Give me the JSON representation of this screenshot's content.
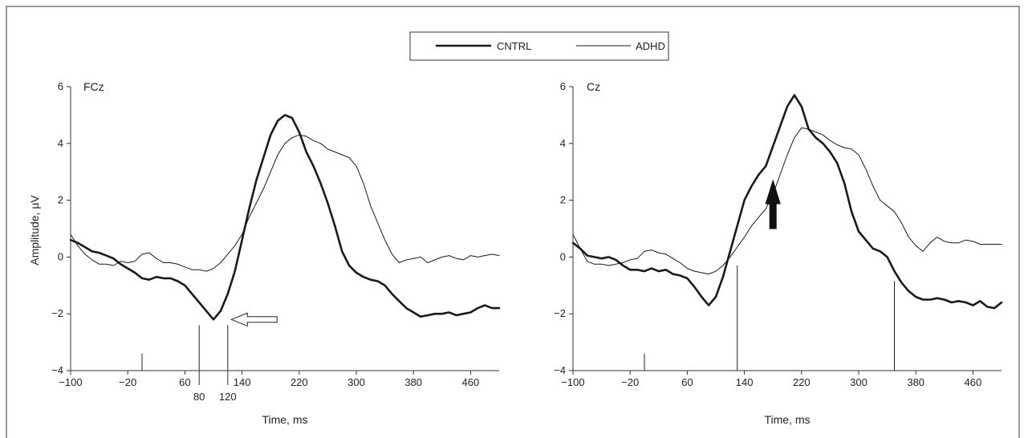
{
  "legend": {
    "items": [
      {
        "name": "CNTRL",
        "weight": "thick"
      },
      {
        "name": "ADHD",
        "weight": "thin"
      }
    ]
  },
  "chart_data": [
    {
      "type": "line",
      "panel_label": "FCz",
      "xlabel": "Time, ms",
      "ylabel": "Amplitude, µV",
      "xlim": [
        -100,
        500
      ],
      "ylim": [
        -4,
        6
      ],
      "xticks": [
        -100,
        -20,
        60,
        140,
        220,
        300,
        380,
        460
      ],
      "xtick_labels": [
        "−100",
        "−20",
        "60",
        "140",
        "220",
        "300",
        "380",
        "460"
      ],
      "yticks": [
        -4,
        -2,
        0,
        2,
        4,
        6
      ],
      "ytick_labels": [
        "−4",
        "−2",
        "0",
        "2",
        "4",
        "6"
      ],
      "extra_ticks": [
        {
          "x": 80,
          "label": "80"
        },
        {
          "x": 120,
          "label": "120"
        }
      ],
      "markers": [
        {
          "x": 0,
          "from": -4,
          "to": -3.4
        },
        {
          "x": 80,
          "from": -4,
          "to": -2.4
        },
        {
          "x": 120,
          "from": -4,
          "to": -2.4
        }
      ],
      "arrow": {
        "style": "hollow",
        "direction": "left",
        "x": 125,
        "y": -2.2
      },
      "series": [
        {
          "name": "CNTRL",
          "weight": "thick",
          "x": [
            -100,
            -90,
            -80,
            -70,
            -60,
            -50,
            -40,
            -30,
            -20,
            -10,
            0,
            10,
            20,
            30,
            40,
            50,
            60,
            70,
            80,
            90,
            100,
            110,
            120,
            130,
            140,
            150,
            160,
            170,
            180,
            190,
            200,
            210,
            220,
            230,
            240,
            250,
            260,
            270,
            280,
            290,
            300,
            310,
            320,
            330,
            340,
            350,
            360,
            370,
            380,
            390,
            400,
            410,
            420,
            430,
            440,
            450,
            460,
            470,
            480,
            490,
            500
          ],
          "y": [
            0.6,
            0.5,
            0.35,
            0.2,
            0.15,
            0.05,
            -0.05,
            -0.25,
            -0.4,
            -0.55,
            -0.75,
            -0.8,
            -0.7,
            -0.75,
            -0.75,
            -0.85,
            -1.0,
            -1.3,
            -1.6,
            -1.9,
            -2.2,
            -1.9,
            -1.3,
            -0.5,
            0.6,
            1.7,
            2.7,
            3.5,
            4.3,
            4.8,
            5.0,
            4.9,
            4.4,
            3.7,
            3.2,
            2.6,
            1.9,
            1.1,
            0.2,
            -0.3,
            -0.55,
            -0.7,
            -0.8,
            -0.85,
            -1.0,
            -1.3,
            -1.55,
            -1.8,
            -1.95,
            -2.1,
            -2.05,
            -2.0,
            -2.0,
            -1.95,
            -2.05,
            -2.0,
            -1.95,
            -1.8,
            -1.7,
            -1.8,
            -1.8
          ]
        },
        {
          "name": "ADHD",
          "weight": "thin",
          "x": [
            -100,
            -90,
            -80,
            -70,
            -60,
            -50,
            -40,
            -30,
            -20,
            -10,
            0,
            10,
            20,
            30,
            40,
            50,
            60,
            70,
            80,
            90,
            100,
            110,
            120,
            130,
            140,
            150,
            160,
            170,
            180,
            190,
            200,
            210,
            220,
            230,
            240,
            250,
            260,
            270,
            280,
            290,
            300,
            310,
            320,
            330,
            340,
            350,
            360,
            370,
            380,
            390,
            400,
            410,
            420,
            430,
            440,
            450,
            460,
            470,
            480,
            490,
            500
          ],
          "y": [
            0.8,
            0.4,
            0.1,
            -0.1,
            -0.25,
            -0.25,
            -0.3,
            -0.15,
            -0.2,
            -0.15,
            0.1,
            0.15,
            -0.05,
            -0.2,
            -0.2,
            -0.25,
            -0.35,
            -0.45,
            -0.45,
            -0.5,
            -0.4,
            -0.2,
            0.1,
            0.4,
            0.8,
            1.4,
            1.9,
            2.4,
            3.0,
            3.6,
            4.0,
            4.2,
            4.3,
            4.25,
            4.1,
            4.0,
            3.8,
            3.7,
            3.6,
            3.5,
            3.2,
            2.6,
            1.8,
            1.2,
            0.6,
            0.1,
            -0.2,
            -0.1,
            -0.05,
            0.0,
            -0.2,
            -0.1,
            0.0,
            0.05,
            -0.05,
            -0.1,
            0.05,
            0.0,
            0.05,
            0.1,
            0.05
          ]
        }
      ]
    },
    {
      "type": "line",
      "panel_label": "Cz",
      "xlabel": "Time, ms",
      "ylabel": "",
      "xlim": [
        -100,
        500
      ],
      "ylim": [
        -4,
        6
      ],
      "xticks": [
        -100,
        -20,
        60,
        140,
        220,
        300,
        380,
        460
      ],
      "xtick_labels": [
        "−100",
        "−20",
        "60",
        "140",
        "220",
        "300",
        "380",
        "460"
      ],
      "yticks": [
        -4,
        -2,
        0,
        2,
        4,
        6
      ],
      "ytick_labels": [
        "−4",
        "−2",
        "0",
        "2",
        "4",
        "6"
      ],
      "extra_ticks": [],
      "markers": [
        {
          "x": 0,
          "from": -4,
          "to": -3.4
        },
        {
          "x": 130,
          "from": -4,
          "to": -0.3
        },
        {
          "x": 350,
          "from": -4,
          "to": -0.85
        }
      ],
      "arrow": {
        "style": "solid",
        "direction": "up",
        "x": 180,
        "y": 1.0
      },
      "series": [
        {
          "name": "CNTRL",
          "weight": "thick",
          "x": [
            -100,
            -90,
            -80,
            -70,
            -60,
            -50,
            -40,
            -30,
            -20,
            -10,
            0,
            10,
            20,
            30,
            40,
            50,
            60,
            70,
            80,
            90,
            100,
            110,
            120,
            130,
            140,
            150,
            160,
            170,
            180,
            190,
            200,
            210,
            220,
            230,
            240,
            250,
            260,
            270,
            280,
            290,
            300,
            310,
            320,
            330,
            340,
            350,
            360,
            370,
            380,
            390,
            400,
            410,
            420,
            430,
            440,
            450,
            460,
            470,
            480,
            490,
            500
          ],
          "y": [
            0.5,
            0.3,
            0.05,
            0.0,
            -0.05,
            0.0,
            -0.1,
            -0.3,
            -0.45,
            -0.45,
            -0.5,
            -0.4,
            -0.5,
            -0.45,
            -0.6,
            -0.65,
            -0.75,
            -1.05,
            -1.4,
            -1.7,
            -1.4,
            -0.7,
            0.2,
            1.1,
            2.0,
            2.5,
            2.9,
            3.2,
            3.9,
            4.6,
            5.3,
            5.7,
            5.3,
            4.5,
            4.2,
            4.0,
            3.7,
            3.3,
            2.6,
            1.6,
            0.9,
            0.6,
            0.3,
            0.2,
            0.0,
            -0.5,
            -0.9,
            -1.2,
            -1.4,
            -1.5,
            -1.5,
            -1.45,
            -1.5,
            -1.6,
            -1.55,
            -1.6,
            -1.7,
            -1.55,
            -1.75,
            -1.8,
            -1.6
          ]
        },
        {
          "name": "ADHD",
          "weight": "thin",
          "x": [
            -100,
            -90,
            -80,
            -70,
            -60,
            -50,
            -40,
            -30,
            -20,
            -10,
            0,
            10,
            20,
            30,
            40,
            50,
            60,
            70,
            80,
            90,
            100,
            110,
            120,
            130,
            140,
            150,
            160,
            170,
            180,
            190,
            200,
            210,
            220,
            230,
            240,
            250,
            260,
            270,
            280,
            290,
            300,
            310,
            320,
            330,
            340,
            350,
            360,
            370,
            380,
            390,
            400,
            410,
            420,
            430,
            440,
            450,
            460,
            470,
            480,
            490,
            500
          ],
          "y": [
            0.8,
            0.3,
            -0.15,
            -0.25,
            -0.25,
            -0.3,
            -0.25,
            -0.2,
            -0.1,
            -0.05,
            0.2,
            0.25,
            0.15,
            0.1,
            -0.05,
            -0.2,
            -0.4,
            -0.5,
            -0.55,
            -0.6,
            -0.5,
            -0.3,
            0.0,
            0.35,
            0.7,
            1.1,
            1.4,
            1.7,
            2.2,
            2.9,
            3.6,
            4.2,
            4.55,
            4.5,
            4.4,
            4.3,
            4.1,
            3.95,
            3.85,
            3.8,
            3.6,
            3.1,
            2.5,
            2.0,
            1.8,
            1.6,
            1.2,
            0.7,
            0.4,
            0.2,
            0.5,
            0.7,
            0.55,
            0.5,
            0.5,
            0.6,
            0.55,
            0.45,
            0.45,
            0.45,
            0.45
          ]
        }
      ]
    }
  ]
}
